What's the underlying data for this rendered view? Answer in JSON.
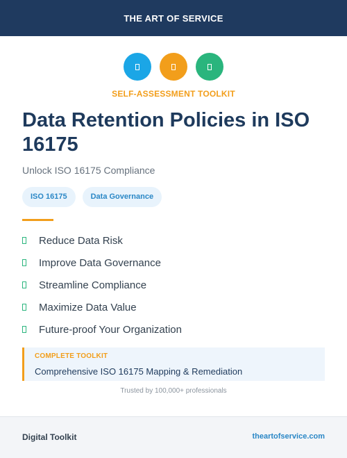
{
  "header": {
    "title": "THE ART OF SERVICE"
  },
  "icons": [
    {
      "name": "document-icon",
      "color": "#1ba6e6"
    },
    {
      "name": "document-icon",
      "color": "#f29e1b"
    },
    {
      "name": "document-icon",
      "color": "#2ab57d"
    }
  ],
  "kicker": "SELF-ASSESSMENT TOOLKIT",
  "title": "Data Retention Policies in ISO 16175",
  "subtitle": "Unlock ISO 16175 Compliance",
  "tags": [
    "ISO 16175",
    "Data Governance"
  ],
  "benefits": [
    "Reduce Data Risk",
    "Improve Data Governance",
    "Streamline Compliance",
    "Maximize Data Value",
    "Future-proof Your Organization"
  ],
  "callout": {
    "label": "COMPLETE TOOLKIT",
    "text": "Comprehensive ISO 16175 Mapping & Remediation"
  },
  "trusted": "Trusted by 100,000+ professionals",
  "footer": {
    "left": "Digital Toolkit",
    "right": "theartofservice.com"
  },
  "colors": {
    "header_bg": "#1f3a5f",
    "accent": "#f29e1b",
    "link": "#2a87c6",
    "check": "#2ab57d"
  }
}
